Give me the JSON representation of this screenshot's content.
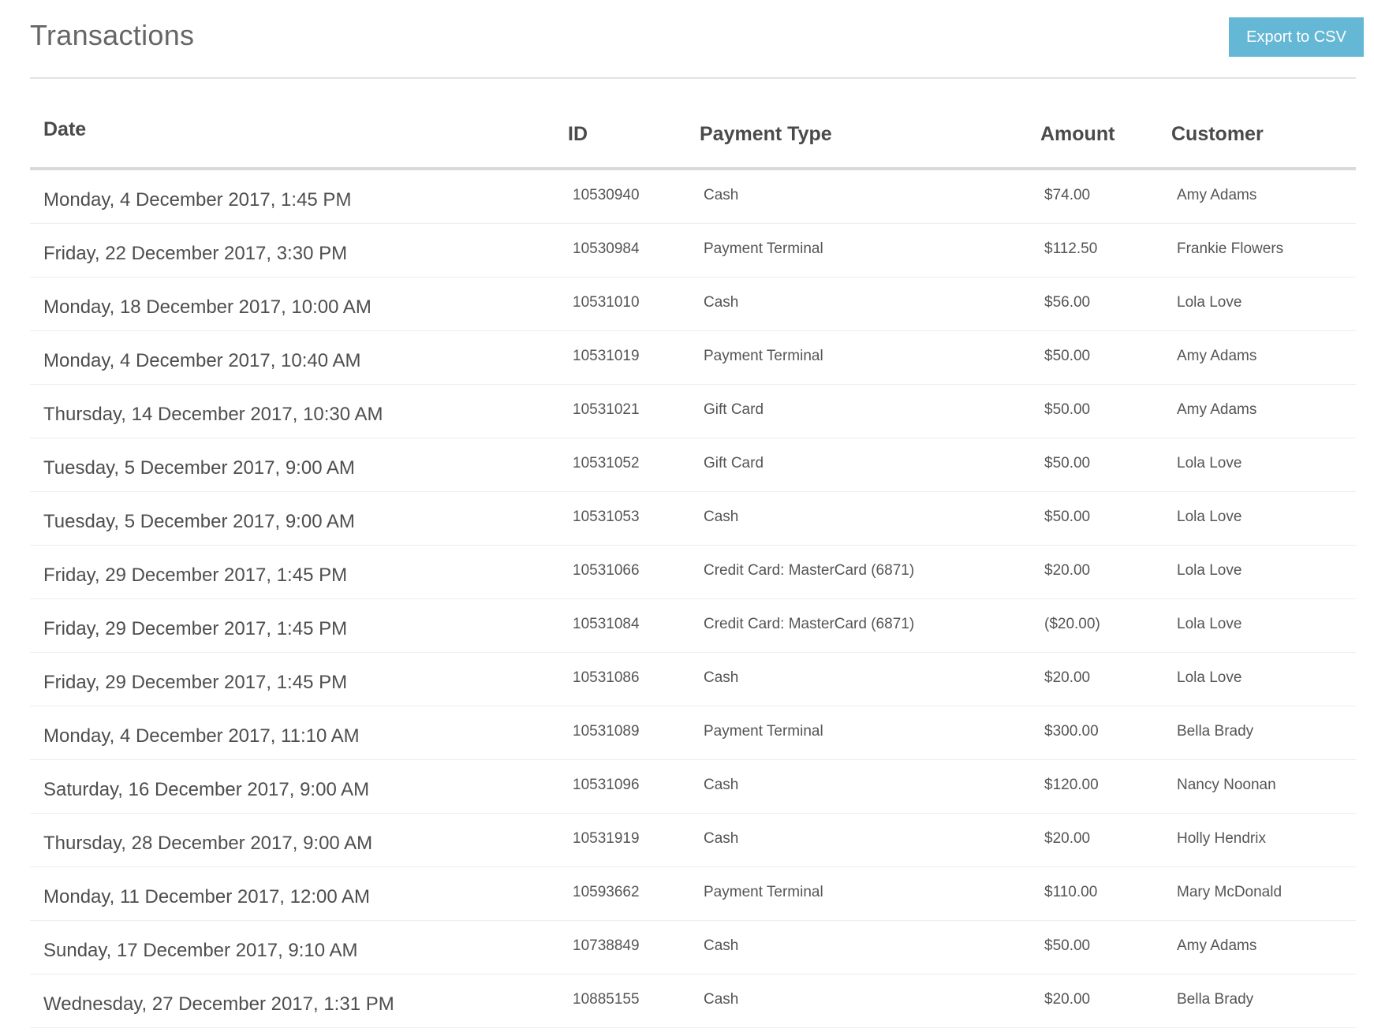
{
  "header": {
    "title": "Transactions",
    "export_label": "Export to CSV",
    "accent_color": "#65b7d6"
  },
  "table": {
    "columns": [
      "Date",
      "ID",
      "Payment Type",
      "Amount",
      "Customer"
    ],
    "rows": [
      [
        "Monday, 4 December 2017, 1:45 PM",
        "10530940",
        "Cash",
        "$74.00",
        "Amy Adams"
      ],
      [
        "Friday, 22 December 2017, 3:30 PM",
        "10530984",
        "Payment Terminal",
        "$112.50",
        "Frankie Flowers"
      ],
      [
        "Monday, 18 December 2017, 10:00 AM",
        "10531010",
        "Cash",
        "$56.00",
        "Lola Love"
      ],
      [
        "Monday, 4 December 2017, 10:40 AM",
        "10531019",
        "Payment Terminal",
        "$50.00",
        "Amy Adams"
      ],
      [
        "Thursday, 14 December 2017, 10:30 AM",
        "10531021",
        "Gift Card",
        "$50.00",
        "Amy Adams"
      ],
      [
        "Tuesday, 5 December 2017, 9:00 AM",
        "10531052",
        "Gift Card",
        "$50.00",
        "Lola Love"
      ],
      [
        "Tuesday, 5 December 2017, 9:00 AM",
        "10531053",
        "Cash",
        "$50.00",
        "Lola Love"
      ],
      [
        "Friday, 29 December 2017, 1:45 PM",
        "10531066",
        "Credit Card: MasterCard (6871)",
        "$20.00",
        "Lola Love"
      ],
      [
        "Friday, 29 December 2017, 1:45 PM",
        "10531084",
        "Credit Card: MasterCard (6871)",
        "($20.00)",
        "Lola Love"
      ],
      [
        "Friday, 29 December 2017, 1:45 PM",
        "10531086",
        "Cash",
        "$20.00",
        "Lola Love"
      ],
      [
        "Monday, 4 December 2017, 11:10 AM",
        "10531089",
        "Payment Terminal",
        "$300.00",
        "Bella Brady"
      ],
      [
        "Saturday, 16 December 2017, 9:00 AM",
        "10531096",
        "Cash",
        "$120.00",
        "Nancy Noonan"
      ],
      [
        "Thursday, 28 December 2017, 9:00 AM",
        "10531919",
        "Cash",
        "$20.00",
        "Holly Hendrix"
      ],
      [
        "Monday, 11 December 2017, 12:00 AM",
        "10593662",
        "Payment Terminal",
        "$110.00",
        "Mary McDonald"
      ],
      [
        "Sunday, 17 December 2017, 9:10 AM",
        "10738849",
        "Cash",
        "$50.00",
        "Amy Adams"
      ],
      [
        "Wednesday, 27 December 2017, 1:31 PM",
        "10885155",
        "Cash",
        "$20.00",
        "Bella Brady"
      ]
    ]
  }
}
